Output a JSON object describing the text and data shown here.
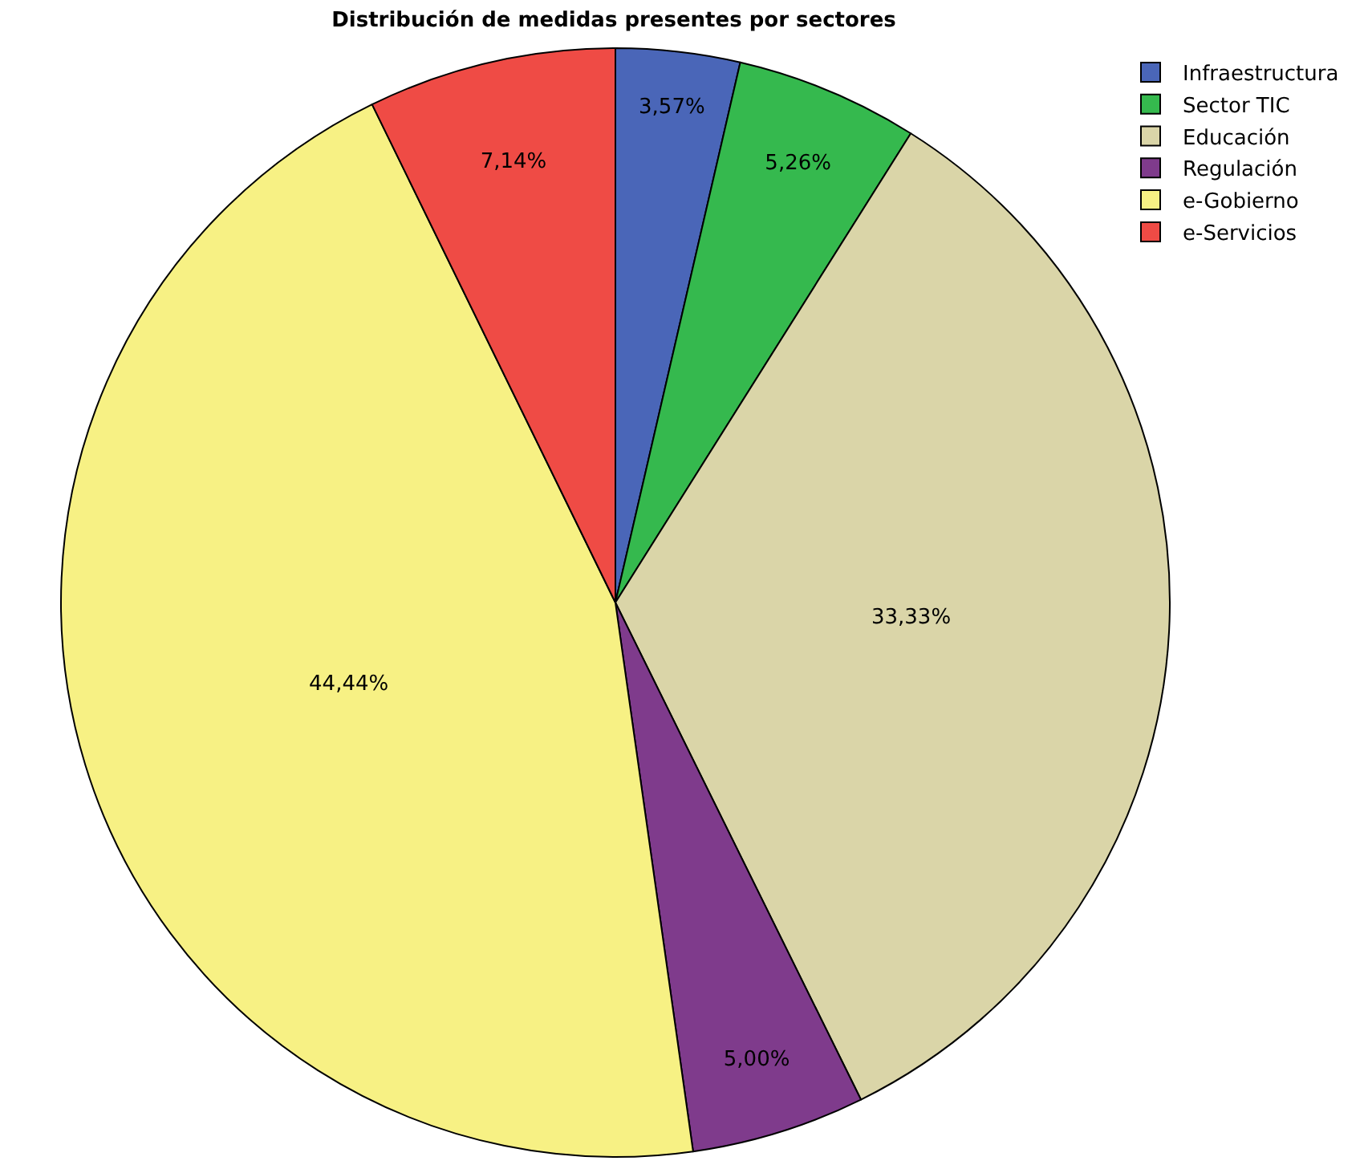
{
  "chart_data": {
    "type": "pie",
    "title": "Distribución de medidas presentes por sectores",
    "categories": [
      "Infraestructura",
      "Sector TIC",
      "Educación",
      "Regulación",
      "e-Gobierno",
      "e-Servicios"
    ],
    "values": [
      3.57,
      5.26,
      33.33,
      5.0,
      44.44,
      7.14
    ],
    "colors": [
      "#4a66b8",
      "#35b94e",
      "#dad5a8",
      "#7f3b8c",
      "#f7f184",
      "#ef4b45"
    ],
    "value_labels": [
      "3,57%",
      "5,26%",
      "33,33%",
      "5,00%",
      "44,44%",
      "7,14%"
    ],
    "legend": "top right"
  }
}
